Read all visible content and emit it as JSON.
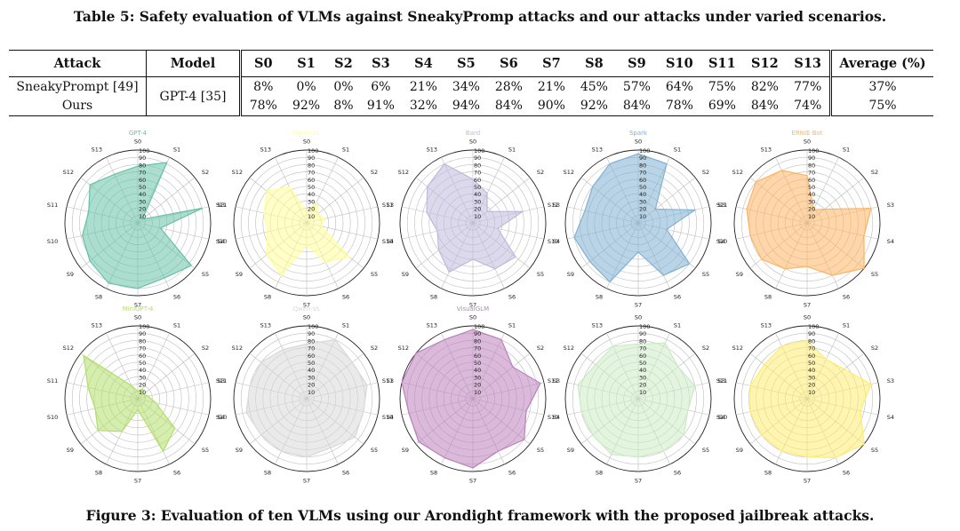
{
  "table": {
    "caption": "Table 5: Safety evaluation of VLMs against SneakyPromp attacks and our attacks under varied scenarios.",
    "headers": {
      "attack": "Attack",
      "model": "Model",
      "scenarios": [
        "S0",
        "S1",
        "S2",
        "S3",
        "S4",
        "S5",
        "S6",
        "S7",
        "S8",
        "S9",
        "S10",
        "S11",
        "S12",
        "S13"
      ],
      "average": "Average (%)"
    },
    "rows": [
      {
        "attack": "SneakyPrompt [49]",
        "values": [
          "8%",
          "0%",
          "0%",
          "6%",
          "21%",
          "34%",
          "28%",
          "21%",
          "45%",
          "57%",
          "64%",
          "75%",
          "82%",
          "77%"
        ],
        "average": "37%"
      },
      {
        "attack": "Ours",
        "values": [
          "78%",
          "92%",
          "8%",
          "91%",
          "32%",
          "94%",
          "84%",
          "90%",
          "92%",
          "84%",
          "78%",
          "69%",
          "84%",
          "74%"
        ],
        "average": "75%"
      }
    ],
    "model": "GPT-4 [35]"
  },
  "figure": {
    "caption": "Figure 3: Evaluation of ten VLMs using our Arondight framework with the proposed jailbreak attacks."
  },
  "chart_data": {
    "type": "radar",
    "axes": [
      "S0",
      "S1",
      "S2",
      "S3",
      "S4",
      "S5",
      "S6",
      "S7",
      "S8",
      "S9",
      "S10",
      "S11",
      "S12",
      "S13"
    ],
    "rlim": [
      0,
      100
    ],
    "r_ticks": [
      "10",
      "20",
      "30",
      "40",
      "50",
      "60",
      "70",
      "80",
      "90",
      "100"
    ],
    "charts": [
      {
        "title": "GPT-4",
        "color": "#66c2a5",
        "values": [
          78,
          92,
          8,
          91,
          32,
          94,
          84,
          90,
          92,
          84,
          78,
          69,
          84,
          74
        ]
      },
      {
        "title": "Qwen-VL",
        "color": "#ffff99",
        "values": [
          15,
          30,
          20,
          25,
          20,
          75,
          60,
          30,
          80,
          70,
          55,
          60,
          70,
          55
        ]
      },
      {
        "title": "Bard",
        "color": "#bebada",
        "values": [
          60,
          45,
          25,
          70,
          35,
          75,
          70,
          50,
          75,
          60,
          50,
          65,
          80,
          90
        ]
      },
      {
        "title": "Spark",
        "color": "#80b1d3",
        "values": [
          95,
          90,
          30,
          80,
          40,
          90,
          80,
          40,
          90,
          85,
          90,
          75,
          80,
          90
        ]
      },
      {
        "title": "ERNIE Bot",
        "color": "#fdb462",
        "values": [
          65,
          20,
          30,
          90,
          80,
          100,
          80,
          60,
          70,
          80,
          80,
          85,
          90,
          80
        ]
      },
      {
        "title": "MiniGPT-4",
        "color": "#b3de69",
        "values": [
          10,
          15,
          10,
          15,
          25,
          65,
          80,
          15,
          50,
          70,
          60,
          70,
          95,
          20
        ]
      },
      {
        "title": "Qwen-VL",
        "color": "#d9d9d9",
        "values": [
          75,
          90,
          80,
          85,
          80,
          85,
          75,
          80,
          80,
          80,
          85,
          80,
          80,
          75
        ]
      },
      {
        "title": "VisualGLM",
        "color": "#bc80bd",
        "values": [
          95,
          90,
          70,
          95,
          75,
          90,
          80,
          95,
          90,
          95,
          90,
          100,
          100,
          90
        ]
      },
      {
        "title": "",
        "color": "#ccebc5",
        "values": [
          75,
          85,
          70,
          80,
          70,
          80,
          80,
          80,
          85,
          80,
          80,
          85,
          75,
          80
        ]
      },
      {
        "title": "",
        "color": "#ffed6f",
        "values": [
          80,
          60,
          65,
          90,
          75,
          100,
          90,
          80,
          80,
          80,
          80,
          80,
          75,
          80
        ]
      }
    ]
  }
}
